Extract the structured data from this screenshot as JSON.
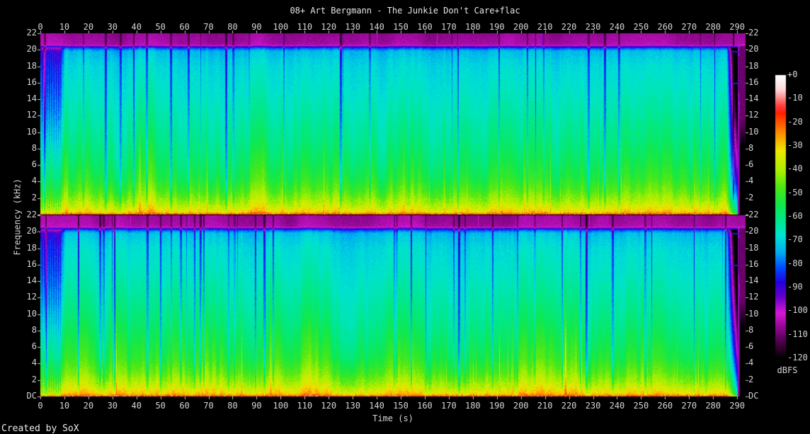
{
  "title": "08+ Art Bergmann - The Junkie Don't Care+flac",
  "footer": "Created by SoX",
  "axes": {
    "x": {
      "label": "Time (s)",
      "ticks": [
        "0",
        "10",
        "20",
        "30",
        "40",
        "50",
        "60",
        "70",
        "80",
        "90",
        "100",
        "110",
        "120",
        "130",
        "140",
        "150",
        "160",
        "170",
        "180",
        "190",
        "200",
        "210",
        "220",
        "230",
        "240",
        "250",
        "260",
        "270",
        "280",
        "290"
      ]
    },
    "y": {
      "label": "Frequency (kHz)",
      "panel_ticks": [
        "22",
        "20",
        "18",
        "16",
        "14",
        "12",
        "10",
        "8",
        "6",
        "4",
        "2"
      ],
      "bottom_extra_tick": "DC"
    },
    "colorbar": {
      "label": "dBFS",
      "ticks": [
        "+0",
        "-10",
        "-20",
        "-30",
        "-40",
        "-50",
        "-60",
        "-70",
        "-80",
        "-90",
        "-100",
        "-110",
        "-120"
      ]
    }
  },
  "colors": {
    "background": "#000000",
    "text": "#d4d4d4",
    "tick": "#c8c8c8"
  },
  "chart_data": {
    "type": "heatmap",
    "title": "08+ Art Bergmann - The Junkie Don't Care+flac",
    "xlabel": "Time (s)",
    "ylabel": "Frequency (kHz)",
    "zlabel": "dBFS",
    "panels": 2,
    "x_range_s": [
      0,
      293.5
    ],
    "y_range_khz": [
      0,
      22
    ],
    "z_range_db": [
      0,
      -120
    ],
    "lowpass_cutoff_khz": 20.5,
    "events": {
      "intro_end_s": 8.5,
      "fade_start_s": 285.5,
      "silence_s": 290.2
    },
    "persistent_tones_khz": [
      19.75,
      15.9
    ],
    "avg_spectrum_db": [
      [
        0.02,
        -19
      ],
      [
        0.08,
        -24
      ],
      [
        0.2,
        -28
      ],
      [
        0.5,
        -32
      ],
      [
        1.0,
        -36
      ],
      [
        1.8,
        -41
      ],
      [
        2.8,
        -46
      ],
      [
        4.5,
        -52
      ],
      [
        6.5,
        -56
      ],
      [
        9,
        -60
      ],
      [
        12,
        -63.5
      ],
      [
        15,
        -66.5
      ],
      [
        18,
        -69
      ],
      [
        19.8,
        -73
      ],
      [
        20.1,
        -79
      ],
      [
        20.35,
        -88
      ],
      [
        20.5,
        -100.5
      ],
      [
        20.62,
        -104.5
      ],
      [
        21.0,
        -105.5
      ],
      [
        22,
        -106.5
      ]
    ],
    "colormap_stops": [
      [
        0,
        "#ffffff"
      ],
      [
        -6,
        "#ffd8d8"
      ],
      [
        -13,
        "#ff4040"
      ],
      [
        -16,
        "#ff2000"
      ],
      [
        -24,
        "#ff8800"
      ],
      [
        -32,
        "#f0e800"
      ],
      [
        -40,
        "#b0f000"
      ],
      [
        -48,
        "#48e818"
      ],
      [
        -55,
        "#10e84c"
      ],
      [
        -62,
        "#00e890"
      ],
      [
        -68,
        "#00e4d4"
      ],
      [
        -75,
        "#00b0f0"
      ],
      [
        -82,
        "#0048ff"
      ],
      [
        -88,
        "#2400e0"
      ],
      [
        -94,
        "#6400c8"
      ],
      [
        -101,
        "#d818d8"
      ],
      [
        -107,
        "#900890"
      ],
      [
        -113,
        "#500050"
      ],
      [
        -118,
        "#180018"
      ],
      [
        -120,
        "#000000"
      ]
    ]
  }
}
